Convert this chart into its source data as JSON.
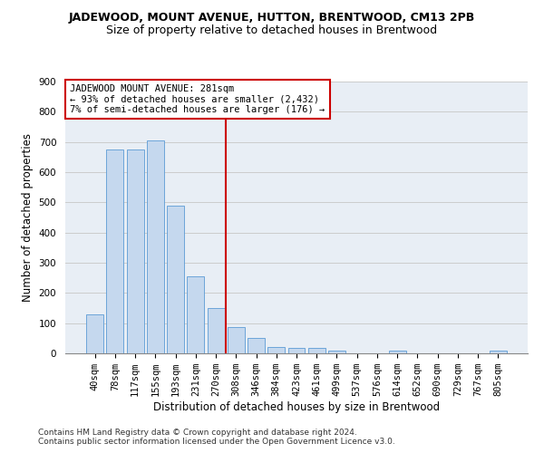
{
  "title": "JADEWOOD, MOUNT AVENUE, HUTTON, BRENTWOOD, CM13 2PB",
  "subtitle": "Size of property relative to detached houses in Brentwood",
  "xlabel": "Distribution of detached houses by size in Brentwood",
  "ylabel": "Number of detached properties",
  "bar_color": "#c5d8ee",
  "bar_edge_color": "#5b9bd5",
  "categories": [
    "40sqm",
    "78sqm",
    "117sqm",
    "155sqm",
    "193sqm",
    "231sqm",
    "270sqm",
    "308sqm",
    "346sqm",
    "384sqm",
    "423sqm",
    "461sqm",
    "499sqm",
    "537sqm",
    "576sqm",
    "614sqm",
    "652sqm",
    "690sqm",
    "729sqm",
    "767sqm",
    "805sqm"
  ],
  "values": [
    130,
    675,
    675,
    705,
    490,
    255,
    150,
    88,
    50,
    22,
    17,
    17,
    10,
    0,
    0,
    8,
    0,
    0,
    0,
    0,
    10
  ],
  "vline_x_idx": 7,
  "vline_color": "#cc0000",
  "annotation_text": "JADEWOOD MOUNT AVENUE: 281sqm\n← 93% of detached houses are smaller (2,432)\n7% of semi-detached houses are larger (176) →",
  "annotation_box_color": "#ffffff",
  "annotation_box_edge_color": "#cc0000",
  "ylim": [
    0,
    900
  ],
  "yticks": [
    0,
    100,
    200,
    300,
    400,
    500,
    600,
    700,
    800,
    900
  ],
  "grid_color": "#cccccc",
  "bg_color": "#e8eef5",
  "footer1": "Contains HM Land Registry data © Crown copyright and database right 2024.",
  "footer2": "Contains public sector information licensed under the Open Government Licence v3.0.",
  "title_fontsize": 9,
  "subtitle_fontsize": 9,
  "xlabel_fontsize": 8.5,
  "ylabel_fontsize": 8.5,
  "tick_fontsize": 7.5,
  "annotation_fontsize": 7.5,
  "footer_fontsize": 6.5
}
